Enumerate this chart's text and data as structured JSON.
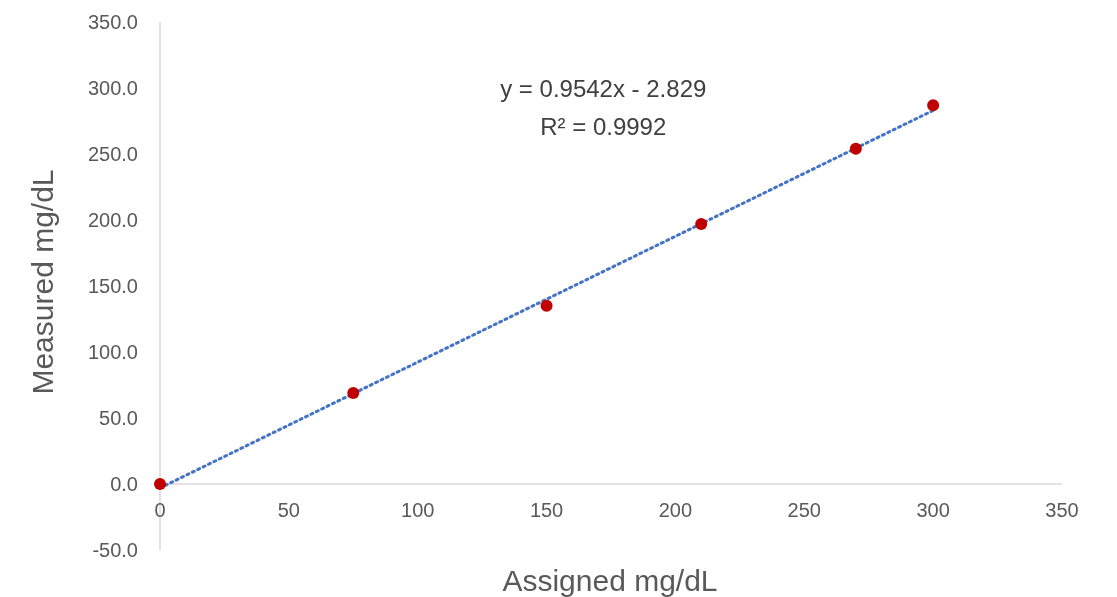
{
  "chart_data": {
    "type": "scatter",
    "xlabel": "Assigned mg/dL",
    "ylabel": "Measured mg/dL",
    "xlim": [
      0,
      350
    ],
    "xticks": [
      0,
      50,
      100,
      150,
      200,
      250,
      300,
      350
    ],
    "ylim": [
      -50,
      350
    ],
    "yticks": [
      {
        "value": -50,
        "label": "-50.0"
      },
      {
        "value": 0,
        "label": "0.0"
      },
      {
        "value": 50,
        "label": "50.0"
      },
      {
        "value": 100,
        "label": "100.0"
      },
      {
        "value": 150,
        "label": "150.0"
      },
      {
        "value": 200,
        "label": "200.0"
      },
      {
        "value": 250,
        "label": "250.0"
      },
      {
        "value": 300,
        "label": "300.0"
      },
      {
        "value": 350,
        "label": "350.0"
      }
    ],
    "grid": false,
    "marker": "circle",
    "annotations": [
      "y = 0.9542x - 2.829",
      "R² = 0.9992"
    ],
    "series": [
      {
        "type": "line",
        "marker": "none",
        "color": "#4472c4",
        "line_style": "dotted",
        "x": [
          0,
          300
        ],
        "values": [
          -3,
          283
        ]
      },
      {
        "color": "#c00000",
        "x": [
          0,
          75,
          150,
          210,
          270,
          300
        ],
        "values": [
          0,
          69,
          135,
          197,
          254,
          287
        ]
      }
    ]
  }
}
